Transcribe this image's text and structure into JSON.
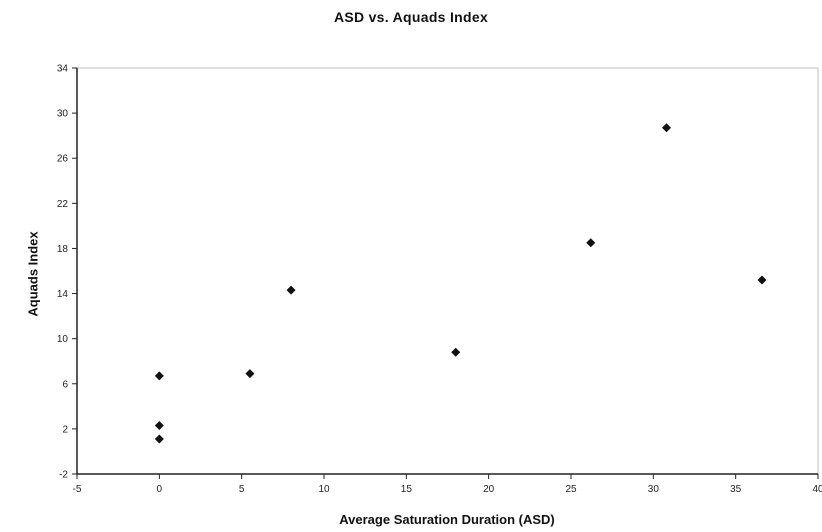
{
  "chart_data": {
    "type": "scatter",
    "title": "ASD vs. Aquads Index",
    "xlabel": "Average Saturation Duration (ASD)",
    "ylabel": "Aquads Index",
    "xlim": [
      -5,
      40
    ],
    "ylim": [
      -2,
      34
    ],
    "x_ticks": [
      -5,
      0,
      5,
      10,
      15,
      20,
      25,
      30,
      35,
      40
    ],
    "y_ticks": [
      -2,
      2,
      6,
      10,
      14,
      18,
      22,
      26,
      30,
      34
    ],
    "grid": false,
    "legend": "none",
    "marker_color": "#111111",
    "points": [
      {
        "x": 0,
        "y": 6.7
      },
      {
        "x": 0,
        "y": 2.3
      },
      {
        "x": 0,
        "y": 1.1
      },
      {
        "x": 5.5,
        "y": 6.9
      },
      {
        "x": 8,
        "y": 14.3
      },
      {
        "x": 18,
        "y": 8.8
      },
      {
        "x": 26.2,
        "y": 18.5
      },
      {
        "x": 30.8,
        "y": 28.7
      },
      {
        "x": 36.6,
        "y": 15.2
      }
    ]
  }
}
